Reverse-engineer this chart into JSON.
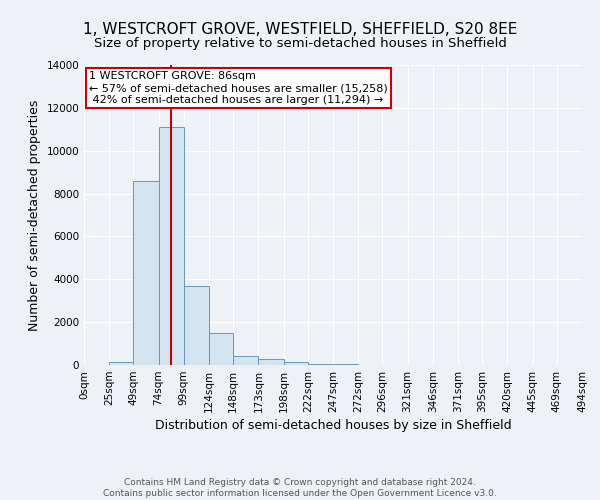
{
  "title": "1, WESTCROFT GROVE, WESTFIELD, SHEFFIELD, S20 8EE",
  "subtitle": "Size of property relative to semi-detached houses in Sheffield",
  "xlabel": "Distribution of semi-detached houses by size in Sheffield",
  "ylabel": "Number of semi-detached properties",
  "property_size": 86,
  "property_label": "1 WESTCROFT GROVE: 86sqm",
  "pct_smaller": 57,
  "pct_larger": 42,
  "n_smaller": 15258,
  "n_larger": 11294,
  "bin_edges": [
    0,
    25,
    49,
    74,
    99,
    124,
    148,
    173,
    198,
    222,
    247,
    272,
    296,
    321,
    346,
    371,
    395,
    420,
    445,
    469,
    494
  ],
  "bar_heights": [
    0,
    120,
    8600,
    11100,
    3700,
    1500,
    420,
    300,
    120,
    50,
    30,
    10,
    5,
    2,
    1,
    0,
    0,
    0,
    0,
    0
  ],
  "bar_color": "#d4e4f0",
  "bar_edge_color": "#6699bb",
  "annotation_box_color": "#cc0000",
  "vline_color": "#cc0000",
  "ylim": [
    0,
    14000
  ],
  "yticks": [
    0,
    2000,
    4000,
    6000,
    8000,
    10000,
    12000,
    14000
  ],
  "footnote": "Contains HM Land Registry data © Crown copyright and database right 2024.\nContains public sector information licensed under the Open Government Licence v3.0.",
  "bg_color": "#eef2f7",
  "grid_color": "#ffffff",
  "title_fontsize": 11,
  "subtitle_fontsize": 9.5,
  "axis_label_fontsize": 9,
  "tick_fontsize": 7.5,
  "annotation_fontsize": 8,
  "footnote_fontsize": 6.5
}
